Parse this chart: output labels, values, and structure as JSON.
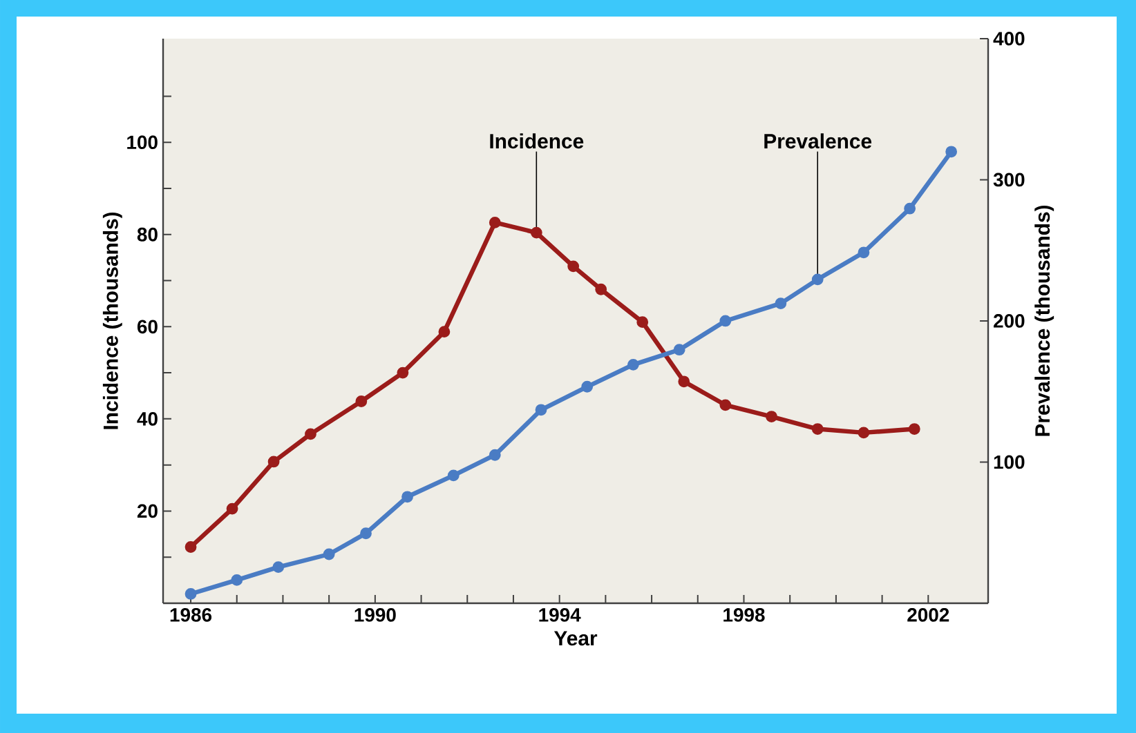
{
  "chart_data": {
    "type": "line",
    "xlabel": "Year",
    "ylabel": "Incidence (thousands)",
    "y2label": "Prevalence (thousands)",
    "xlim": [
      1985.4,
      2003.3
    ],
    "ylim": [
      0,
      122.5
    ],
    "y2lim": [
      0,
      400
    ],
    "xticks": [
      {
        "value": 1986,
        "label": "1986"
      },
      {
        "value": 1987,
        "label": null
      },
      {
        "value": 1988,
        "label": null
      },
      {
        "value": 1989,
        "label": null
      },
      {
        "value": 1990,
        "label": "1990"
      },
      {
        "value": 1991,
        "label": null
      },
      {
        "value": 1992,
        "label": null
      },
      {
        "value": 1993,
        "label": null
      },
      {
        "value": 1994,
        "label": "1994"
      },
      {
        "value": 1995,
        "label": null
      },
      {
        "value": 1996,
        "label": null
      },
      {
        "value": 1997,
        "label": null
      },
      {
        "value": 1998,
        "label": "1998"
      },
      {
        "value": 1999,
        "label": null
      },
      {
        "value": 2000,
        "label": null
      },
      {
        "value": 2001,
        "label": null
      },
      {
        "value": 2002,
        "label": "2002"
      }
    ],
    "yticks": [
      {
        "value": 10,
        "label": null
      },
      20,
      {
        "value": 30,
        "label": null
      },
      40,
      {
        "value": 50,
        "label": null
      },
      60,
      {
        "value": 70,
        "label": null
      },
      80,
      {
        "value": 90,
        "label": null
      },
      100,
      {
        "value": 110,
        "label": null
      }
    ],
    "y2ticks": [
      100,
      200,
      300,
      400
    ],
    "marker": "circle",
    "line_style": "solid",
    "series": [
      {
        "name": "Incidence",
        "color": "#9b1c1a",
        "x": [
          1986.0,
          1986.9,
          1987.8,
          1988.6,
          1989.7,
          1990.6,
          1991.5,
          1992.6,
          1993.5,
          1994.3,
          1994.9,
          1995.8,
          1996.7,
          1997.6,
          1998.6,
          1999.6,
          2000.6,
          2001.7
        ],
        "values": [
          12.2,
          20.5,
          30.7,
          36.7,
          43.8,
          50.0,
          58.9,
          82.6,
          80.4,
          73.1,
          68.1,
          61.0,
          48.1,
          43.0,
          40.5,
          37.8,
          37.0,
          37.8
        ]
      },
      {
        "name": "Prevalence",
        "color": "#4a7cc4",
        "axis": "y2",
        "x": [
          1986.0,
          1987.0,
          1987.9,
          1989.0,
          1989.8,
          1990.7,
          1991.7,
          1992.6,
          1993.6,
          1994.6,
          1995.6,
          1996.6,
          1997.6,
          1998.8,
          1999.6,
          2000.6,
          2001.6,
          2002.5
        ],
        "values": [
          6.6,
          16.4,
          25.6,
          34.7,
          49.5,
          75.4,
          90.5,
          105,
          137,
          153.4,
          169,
          179.6,
          200,
          212.4,
          229.4,
          248.5,
          279.6,
          319.9
        ]
      }
    ]
  }
}
